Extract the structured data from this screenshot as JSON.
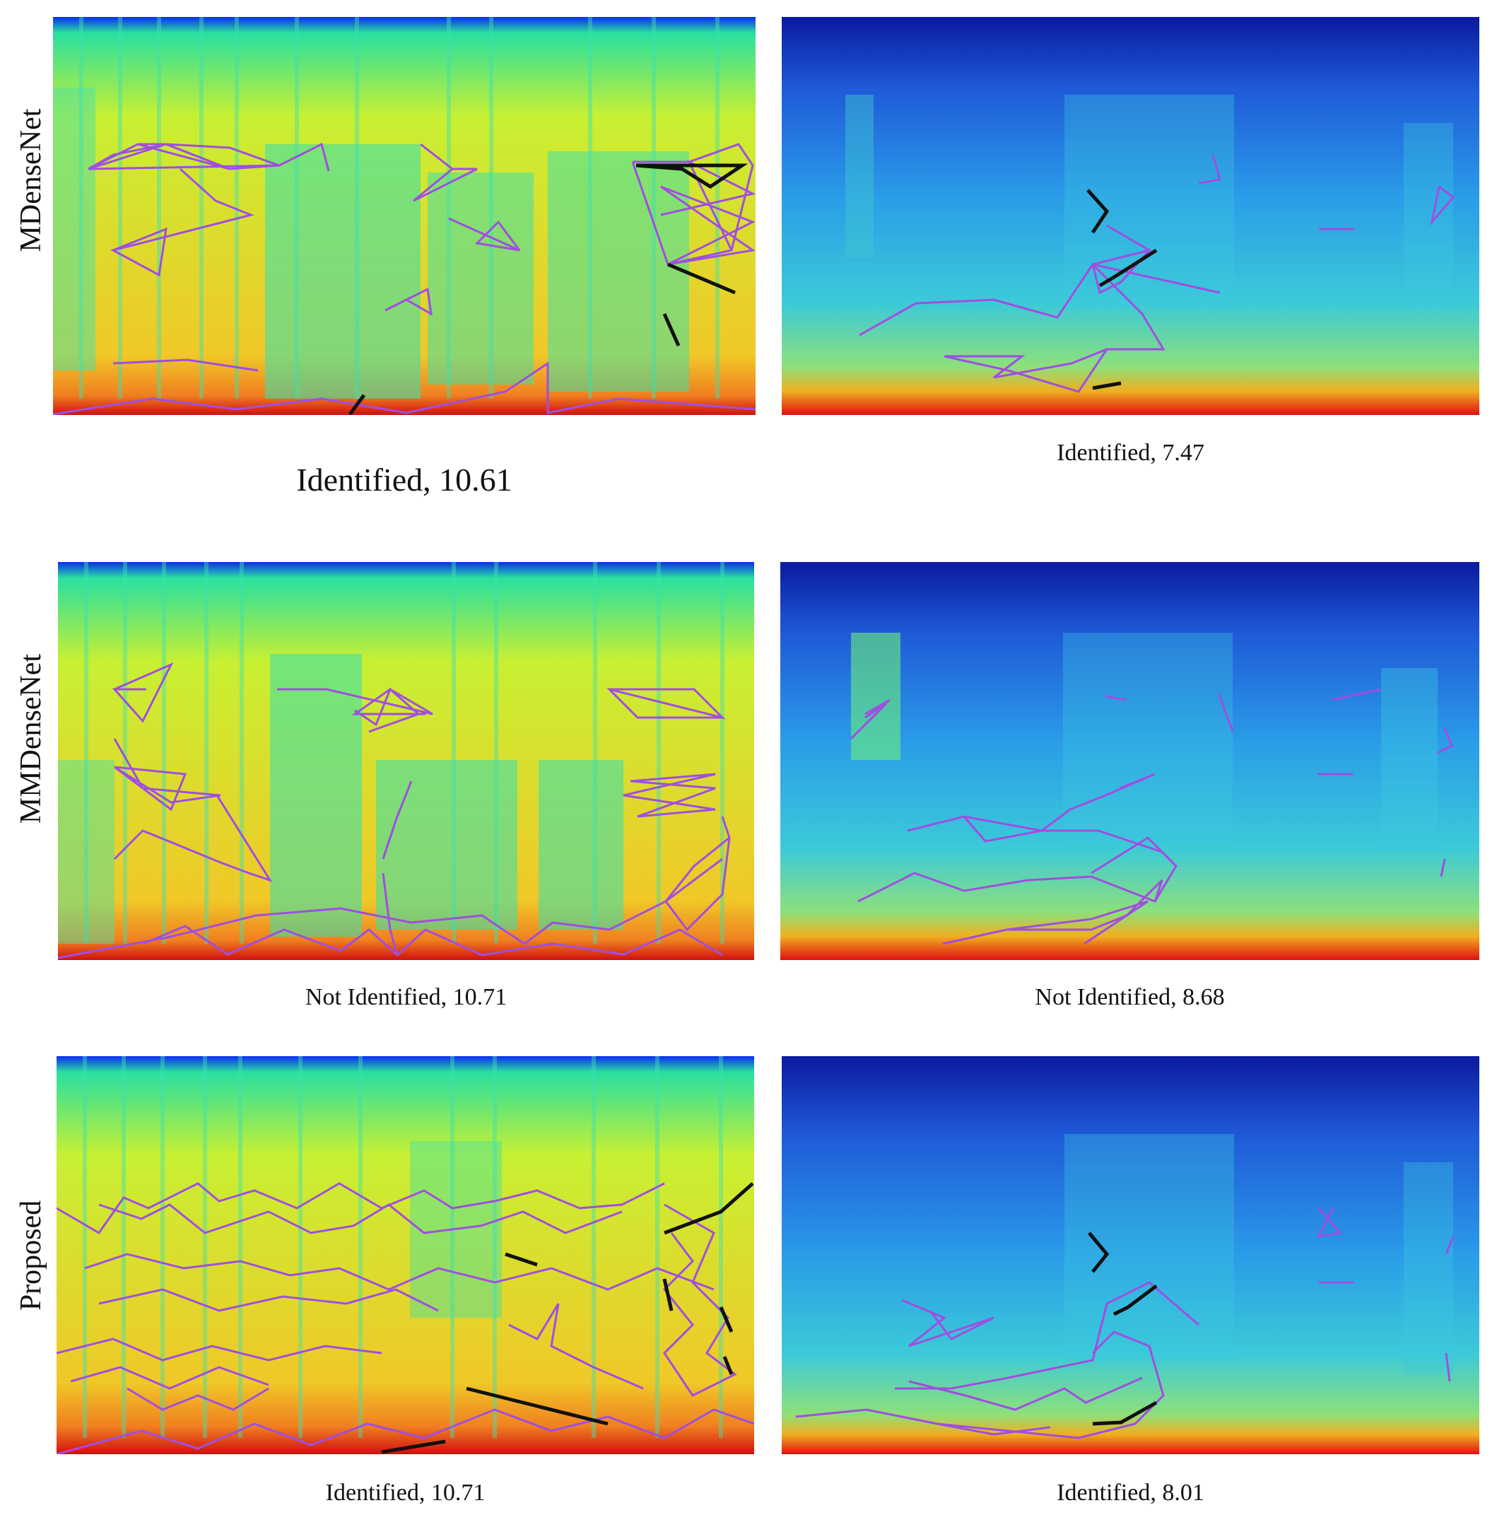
{
  "rows": [
    {
      "label": "MDenseNet",
      "panels": [
        {
          "caption": "Identified, 10.61",
          "palette": "warm"
        },
        {
          "caption": "Identified, 7.47",
          "palette": "cool"
        }
      ]
    },
    {
      "label": "MMDenseNet",
      "panels": [
        {
          "caption": "Not Identified, 10.71",
          "palette": "warm"
        },
        {
          "caption": "Not Identified, 8.68",
          "palette": "cool"
        }
      ]
    },
    {
      "label": "Proposed",
      "panels": [
        {
          "caption": "Identified, 10.71",
          "palette": "warm"
        },
        {
          "caption": "Identified, 8.01",
          "palette": "cool"
        }
      ]
    }
  ],
  "colors": {
    "constellation_edge": "#a04ee0",
    "matched_edge": "#111111",
    "spectrogram_warm_stops": [
      "#0a2cf0",
      "#28e0a0",
      "#c8f032",
      "#f08020",
      "#d01010"
    ],
    "spectrogram_cool_stops": [
      "#0a1aa0",
      "#1f6ee8",
      "#3cc8e8",
      "#e6f040",
      "#e01010"
    ]
  }
}
